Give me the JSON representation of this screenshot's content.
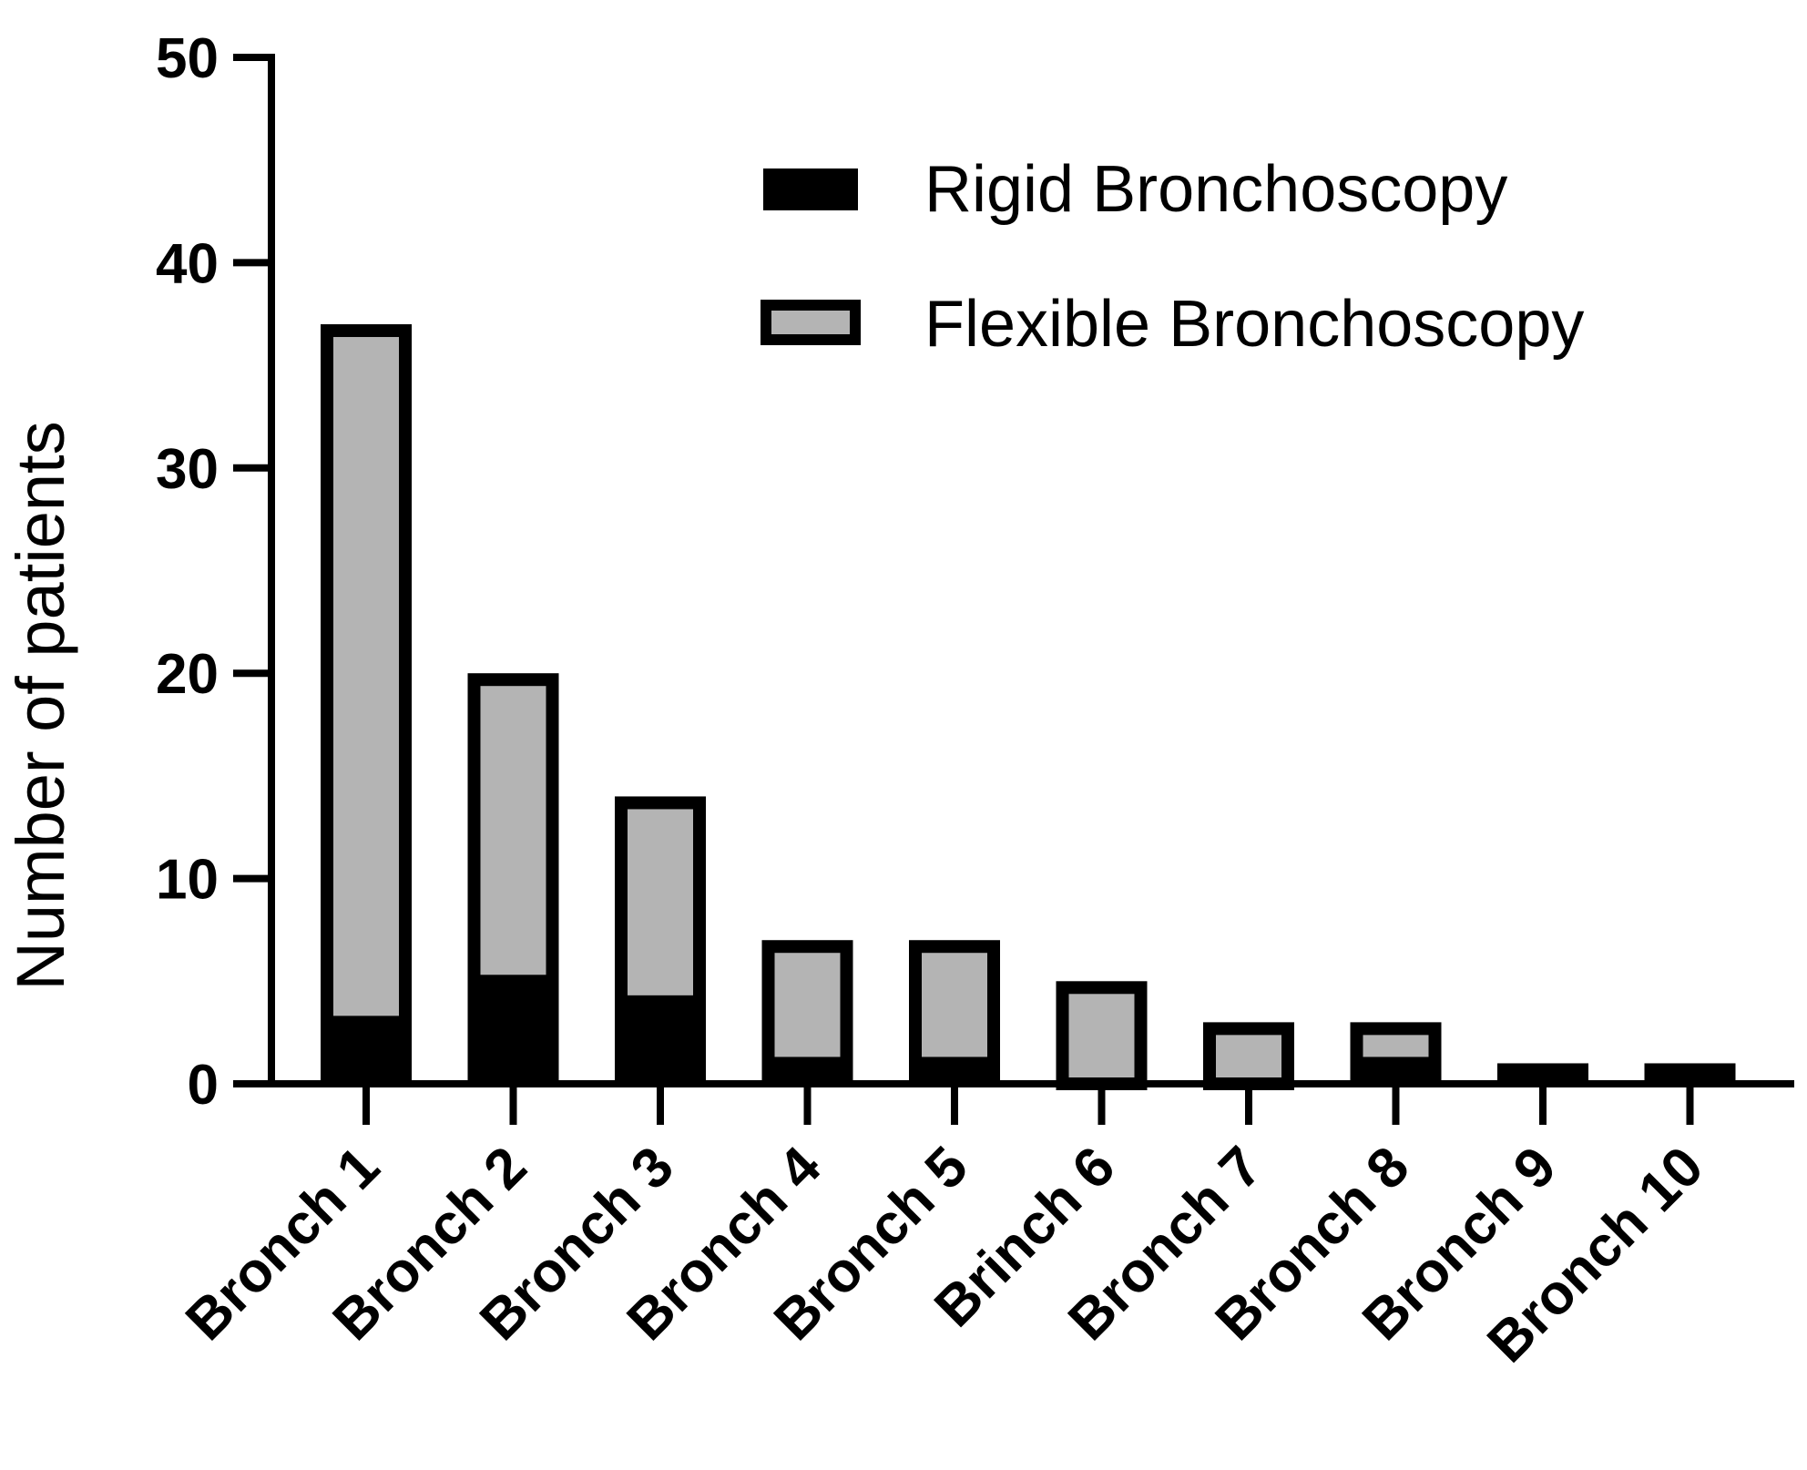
{
  "chart_data": {
    "type": "bar",
    "stacked": true,
    "categories": [
      "Bronch 1",
      "Bronch 2",
      "Bronch 3",
      "Bronch 4",
      "Bronch 5",
      "Brinch 6",
      "Bronch 7",
      "Bronch 8",
      "Bronch 9",
      "Bronch 10"
    ],
    "series": [
      {
        "name": "Rigid Bronchoscopy",
        "color": "#000000",
        "values": [
          3,
          5,
          4,
          1,
          1,
          0,
          0,
          1,
          1,
          1
        ]
      },
      {
        "name": "Flexible Bronchoscopy",
        "color": "#b4b4b4",
        "values": [
          34,
          15,
          10,
          6,
          6,
          5,
          3,
          2,
          0,
          0
        ]
      }
    ],
    "totals": [
      37,
      20,
      14,
      7,
      7,
      5,
      3,
      3,
      1,
      1
    ],
    "title": "",
    "xlabel": "",
    "ylabel": "Number of patients",
    "ylim": [
      0,
      50
    ],
    "yticks": [
      0,
      10,
      20,
      30,
      40,
      50
    ],
    "grid": false,
    "legend_position": "top-right",
    "outline_color": "#000000"
  }
}
